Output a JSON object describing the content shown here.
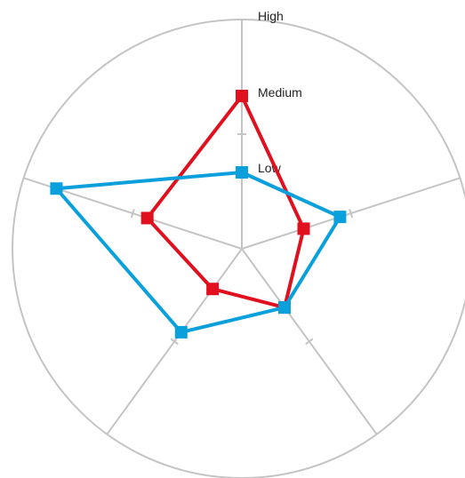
{
  "chart_data": {
    "type": "radar",
    "title": "",
    "levels": [
      "Low",
      "Medium",
      "High"
    ],
    "axes": [
      "",
      "",
      "",
      "",
      ""
    ],
    "rmax": 3,
    "grid": true,
    "legend": "none",
    "series": [
      {
        "color": "#e0101e",
        "values": [
          2.0,
          0.85,
          0.95,
          0.65,
          1.3
        ]
      },
      {
        "color": "#0aa0dc",
        "values": [
          1.0,
          1.35,
          0.95,
          1.35,
          2.55
        ]
      }
    ]
  }
}
